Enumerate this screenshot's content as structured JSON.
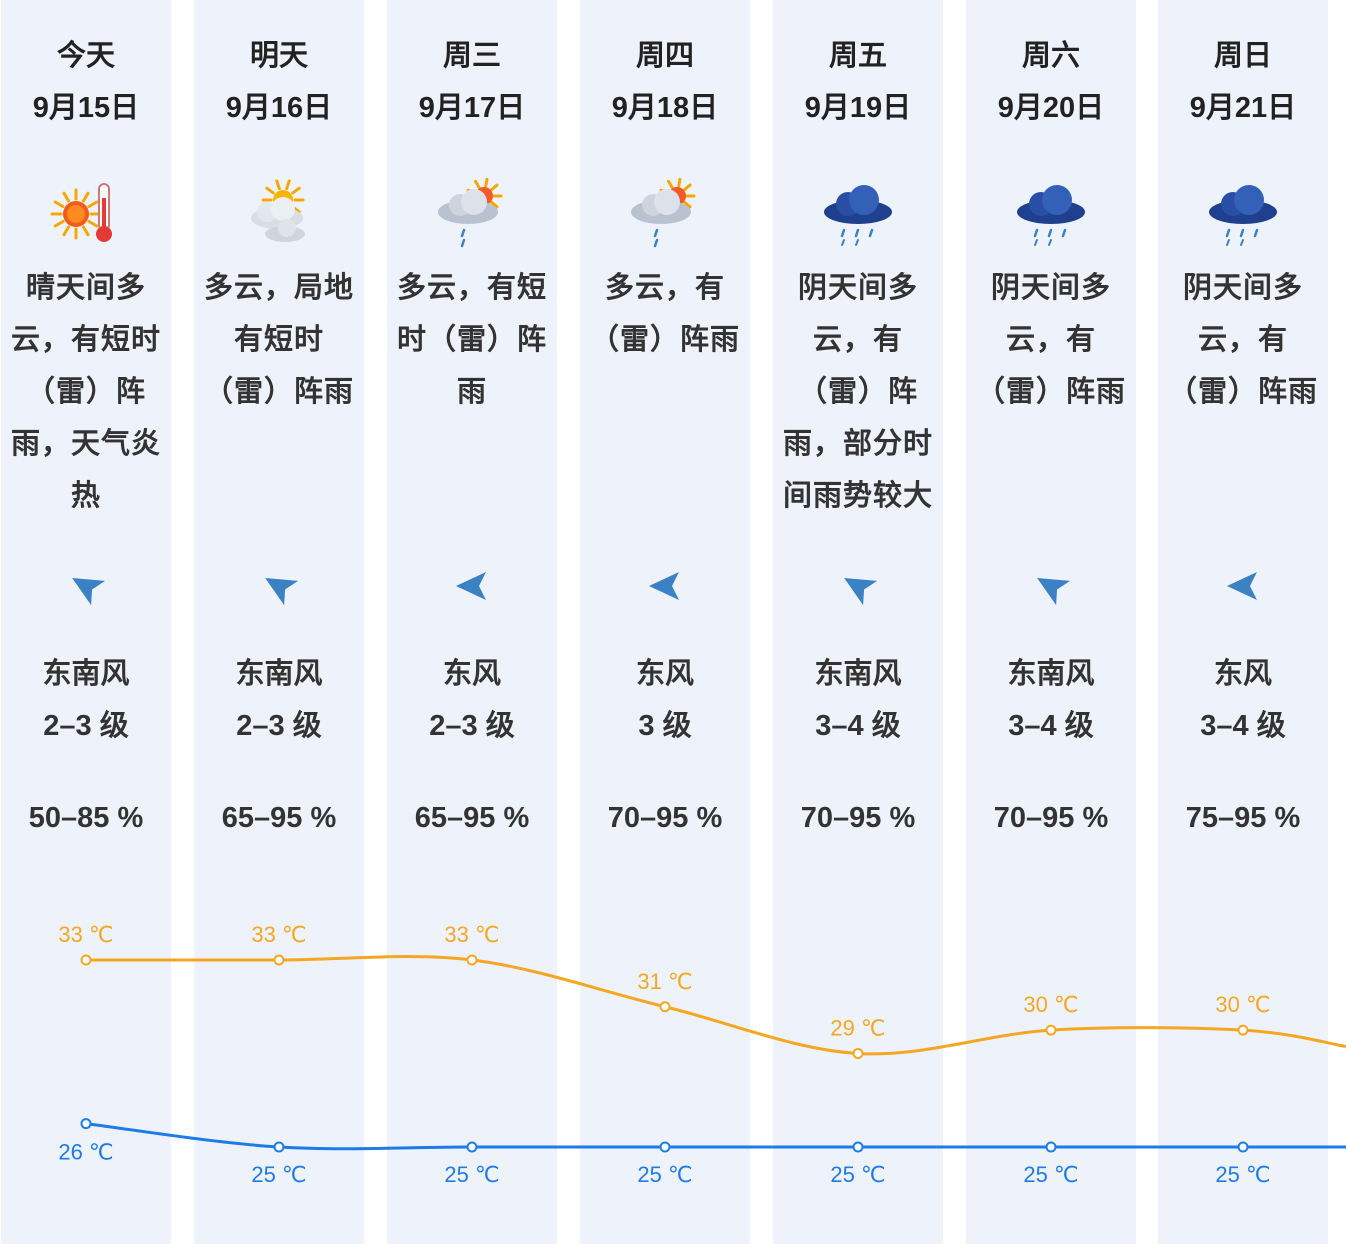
{
  "days": [
    {
      "name": "今天",
      "date": "9月15日",
      "icon": "sunny-hot-icon",
      "desc": [
        "晴天间多",
        "云，有短时",
        "（雷）阵",
        "雨，天气炎",
        "热"
      ],
      "wind_dir": "东南风",
      "wind_level": "2–3 级",
      "humidity": "50–85 %",
      "high": "33 ℃",
      "low": "26 ℃"
    },
    {
      "name": "明天",
      "date": "9月16日",
      "icon": "partly-cloudy-icon",
      "desc": [
        "多云，局地",
        "有短时",
        "（雷）阵雨"
      ],
      "wind_dir": "东南风",
      "wind_level": "2–3 级",
      "humidity": "65–95 %",
      "high": "33 ℃",
      "low": "25 ℃"
    },
    {
      "name": "周三",
      "date": "9月17日",
      "icon": "cloud-sun-rain-icon",
      "desc": [
        "多云，有短",
        "时（雷）阵",
        "雨"
      ],
      "wind_dir": "东风",
      "wind_level": "2–3 级",
      "humidity": "65–95 %",
      "high": "33 ℃",
      "low": "25 ℃"
    },
    {
      "name": "周四",
      "date": "9月18日",
      "icon": "cloud-sun-rain-icon",
      "desc": [
        "多云，有",
        "（雷）阵雨"
      ],
      "wind_dir": "东风",
      "wind_level": "3 级",
      "humidity": "70–95 %",
      "high": "31 ℃",
      "low": "25 ℃"
    },
    {
      "name": "周五",
      "date": "9月19日",
      "icon": "dark-rain-cloud-icon",
      "desc": [
        "阴天间多",
        "云，有",
        "（雷）阵",
        "雨，部分时",
        "间雨势较大"
      ],
      "wind_dir": "东南风",
      "wind_level": "3–4 级",
      "humidity": "70–95 %",
      "high": "29 ℃",
      "low": "25 ℃"
    },
    {
      "name": "周六",
      "date": "9月20日",
      "icon": "dark-rain-cloud-icon",
      "desc": [
        "阴天间多",
        "云，有",
        "（雷）阵雨"
      ],
      "wind_dir": "东南风",
      "wind_level": "3–4 级",
      "humidity": "70–95 %",
      "high": "30 ℃",
      "low": "25 ℃"
    },
    {
      "name": "周日",
      "date": "9月21日",
      "icon": "dark-rain-cloud-icon",
      "desc": [
        "阴天间多",
        "云，有",
        "（雷）阵雨"
      ],
      "wind_dir": "东风",
      "wind_level": "3–4 级",
      "humidity": "75–95 %",
      "high": "30 ℃",
      "low": "25 ℃"
    }
  ],
  "chart_data": {
    "type": "line",
    "categories": [
      "9月15日",
      "9月16日",
      "9月17日",
      "9月18日",
      "9月19日",
      "9月20日",
      "9月21日"
    ],
    "series": [
      {
        "values": [
          33,
          33,
          33,
          31,
          29,
          30,
          30
        ],
        "color": "#f5a623"
      },
      {
        "values": [
          26,
          25,
          25,
          25,
          25,
          25,
          25
        ],
        "color": "#1e7be8"
      }
    ],
    "unit": "℃"
  },
  "colors": {
    "high": "#f5a623",
    "low": "#1e7be8",
    "column_bg": "#eef3fb",
    "arrow": "#3b82c4"
  }
}
